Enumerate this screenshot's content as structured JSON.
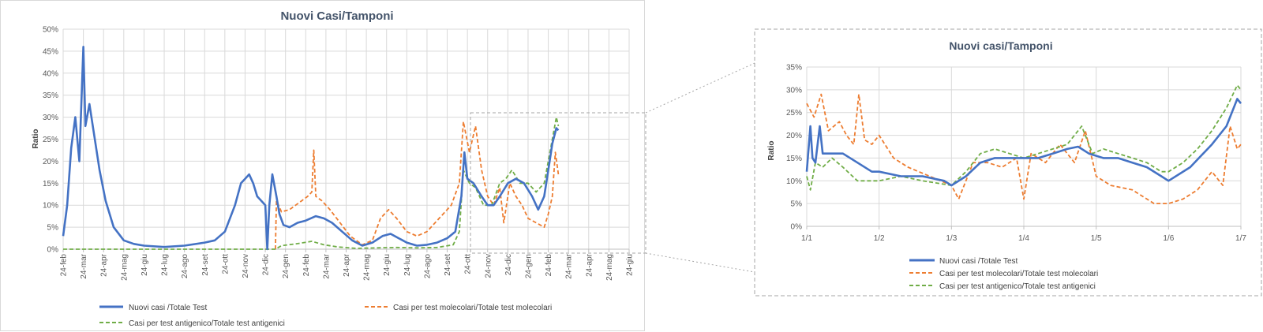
{
  "colors": {
    "series_total": "#4472c4",
    "series_molecular": "#ed7d31",
    "series_antigenic": "#70ad47",
    "gridline": "#d9d9d9",
    "zoom_frame": "#a6a6a6"
  },
  "chart_data": [
    {
      "type": "line",
      "title": "Nuovi Casi/Tamponi",
      "xlabel": "",
      "ylabel": "Ratio",
      "ylim": [
        0,
        0.5
      ],
      "y_ticks": [
        "0%",
        "5%",
        "10%",
        "15%",
        "20%",
        "25%",
        "30%",
        "35%",
        "40%",
        "45%",
        "50%"
      ],
      "x_ticks": [
        "24-feb",
        "24-mar",
        "24-apr",
        "24-mag",
        "24-giu",
        "24-lug",
        "24-ago",
        "24-set",
        "24-ott",
        "24-nov",
        "24-dic",
        "24-gen",
        "24-feb",
        "24-mar",
        "24-apr",
        "24-mag",
        "24-giu",
        "24-lug",
        "24-ago",
        "24-set",
        "24-ott",
        "24-nov",
        "24-dic",
        "24-gen",
        "24-feb",
        "24-mar",
        "24-apr",
        "24-mag",
        "24-giu"
      ],
      "grid": true,
      "legend_position": "bottom",
      "series": [
        {
          "name": "Nuovi casi /Totale Test",
          "color_key": "series_total",
          "style": "solid",
          "points": [
            [
              0,
              0.03
            ],
            [
              0.2,
              0.1
            ],
            [
              0.4,
              0.23
            ],
            [
              0.6,
              0.3
            ],
            [
              0.8,
              0.2
            ],
            [
              1.0,
              0.46
            ],
            [
              1.1,
              0.28
            ],
            [
              1.3,
              0.33
            ],
            [
              1.5,
              0.27
            ],
            [
              1.8,
              0.18
            ],
            [
              2.1,
              0.11
            ],
            [
              2.5,
              0.05
            ],
            [
              3,
              0.02
            ],
            [
              3.5,
              0.012
            ],
            [
              4,
              0.008
            ],
            [
              5,
              0.005
            ],
            [
              6,
              0.008
            ],
            [
              7,
              0.015
            ],
            [
              7.5,
              0.02
            ],
            [
              8,
              0.04
            ],
            [
              8.5,
              0.1
            ],
            [
              8.8,
              0.15
            ],
            [
              9,
              0.16
            ],
            [
              9.2,
              0.17
            ],
            [
              9.4,
              0.15
            ],
            [
              9.6,
              0.12
            ],
            [
              9.8,
              0.11
            ],
            [
              10,
              0.1
            ],
            [
              10.1,
              0.0
            ],
            [
              10.2,
              0.1
            ],
            [
              10.35,
              0.17
            ],
            [
              10.55,
              0.12
            ],
            [
              10.7,
              0.08
            ],
            [
              10.9,
              0.055
            ],
            [
              11.2,
              0.05
            ],
            [
              11.6,
              0.06
            ],
            [
              12,
              0.065
            ],
            [
              12.5,
              0.075
            ],
            [
              12.9,
              0.07
            ],
            [
              13.3,
              0.06
            ],
            [
              13.8,
              0.04
            ],
            [
              14.3,
              0.02
            ],
            [
              14.8,
              0.008
            ],
            [
              15.3,
              0.015
            ],
            [
              15.8,
              0.03
            ],
            [
              16.2,
              0.035
            ],
            [
              16.6,
              0.025
            ],
            [
              17.0,
              0.015
            ],
            [
              17.5,
              0.008
            ],
            [
              18.0,
              0.01
            ],
            [
              18.5,
              0.015
            ],
            [
              19.0,
              0.025
            ],
            [
              19.4,
              0.04
            ],
            [
              19.7,
              0.12
            ],
            [
              19.85,
              0.22
            ],
            [
              20.0,
              0.16
            ],
            [
              20.3,
              0.15
            ],
            [
              20.7,
              0.12
            ],
            [
              21.0,
              0.1
            ],
            [
              21.3,
              0.1
            ],
            [
              21.6,
              0.12
            ],
            [
              22.0,
              0.15
            ],
            [
              22.4,
              0.16
            ],
            [
              22.8,
              0.15
            ],
            [
              23.2,
              0.12
            ],
            [
              23.5,
              0.09
            ],
            [
              23.8,
              0.12
            ],
            [
              24.0,
              0.18
            ],
            [
              24.2,
              0.24
            ],
            [
              24.4,
              0.275
            ],
            [
              24.5,
              0.27
            ]
          ]
        },
        {
          "name": "Casi per test molecolari/Totale test molecolari",
          "color_key": "series_molecular",
          "style": "dashed",
          "points": [
            [
              10.5,
              0.0
            ],
            [
              10.55,
              0.11
            ],
            [
              10.8,
              0.085
            ],
            [
              11.2,
              0.09
            ],
            [
              11.5,
              0.1
            ],
            [
              11.8,
              0.11
            ],
            [
              12.1,
              0.12
            ],
            [
              12.3,
              0.13
            ],
            [
              12.4,
              0.225
            ],
            [
              12.5,
              0.12
            ],
            [
              12.8,
              0.11
            ],
            [
              13.2,
              0.09
            ],
            [
              13.7,
              0.06
            ],
            [
              14.2,
              0.03
            ],
            [
              14.8,
              0.01
            ],
            [
              15.3,
              0.02
            ],
            [
              15.7,
              0.07
            ],
            [
              16.1,
              0.09
            ],
            [
              16.5,
              0.07
            ],
            [
              17.0,
              0.04
            ],
            [
              17.5,
              0.03
            ],
            [
              18.0,
              0.04
            ],
            [
              18.6,
              0.07
            ],
            [
              19.2,
              0.1
            ],
            [
              19.6,
              0.15
            ],
            [
              19.8,
              0.29
            ],
            [
              20.1,
              0.22
            ],
            [
              20.4,
              0.28
            ],
            [
              20.7,
              0.18
            ],
            [
              21.0,
              0.12
            ],
            [
              21.3,
              0.1
            ],
            [
              21.6,
              0.14
            ],
            [
              21.8,
              0.06
            ],
            [
              22.1,
              0.15
            ],
            [
              22.4,
              0.12
            ],
            [
              22.7,
              0.1
            ],
            [
              23.0,
              0.07
            ],
            [
              23.4,
              0.06
            ],
            [
              23.8,
              0.05
            ],
            [
              24.0,
              0.08
            ],
            [
              24.2,
              0.12
            ],
            [
              24.35,
              0.22
            ],
            [
              24.5,
              0.17
            ]
          ]
        },
        {
          "name": "Casi per test antigenico/Totale test antigenici",
          "color_key": "series_antigenic",
          "style": "dashed",
          "points": [
            [
              0,
              0.0
            ],
            [
              10.5,
              0.0
            ],
            [
              10.8,
              0.008
            ],
            [
              11.5,
              0.012
            ],
            [
              12.3,
              0.018
            ],
            [
              12.9,
              0.01
            ],
            [
              13.6,
              0.005
            ],
            [
              14.5,
              0.002
            ],
            [
              15.5,
              0.003
            ],
            [
              16.5,
              0.004
            ],
            [
              17.5,
              0.003
            ],
            [
              18.5,
              0.004
            ],
            [
              19.3,
              0.01
            ],
            [
              19.6,
              0.04
            ],
            [
              19.8,
              0.18
            ],
            [
              20.1,
              0.15
            ],
            [
              20.4,
              0.14
            ],
            [
              20.8,
              0.1
            ],
            [
              21.2,
              0.1
            ],
            [
              21.6,
              0.15
            ],
            [
              21.9,
              0.16
            ],
            [
              22.2,
              0.18
            ],
            [
              22.6,
              0.15
            ],
            [
              23.0,
              0.15
            ],
            [
              23.4,
              0.13
            ],
            [
              23.8,
              0.15
            ],
            [
              24.0,
              0.2
            ],
            [
              24.2,
              0.25
            ],
            [
              24.4,
              0.3
            ],
            [
              24.5,
              0.28
            ]
          ]
        }
      ]
    },
    {
      "type": "line",
      "title": "Nuovi casi/Tamponi",
      "xlabel": "",
      "ylabel": "Ratio",
      "ylim": [
        0,
        0.35
      ],
      "y_ticks": [
        "0%",
        "5%",
        "10%",
        "15%",
        "20%",
        "25%",
        "30%",
        "35%"
      ],
      "x_ticks": [
        "1/1",
        "1/2",
        "1/3",
        "1/4",
        "1/5",
        "1/6",
        "1/7"
      ],
      "grid": true,
      "legend_position": "bottom",
      "series": [
        {
          "name": "Nuovi casi /Totale Test",
          "color_key": "series_total",
          "style": "solid",
          "points": [
            [
              0,
              0.12
            ],
            [
              0.05,
              0.22
            ],
            [
              0.08,
              0.15
            ],
            [
              0.12,
              0.14
            ],
            [
              0.18,
              0.22
            ],
            [
              0.22,
              0.16
            ],
            [
              0.35,
              0.16
            ],
            [
              0.5,
              0.16
            ],
            [
              0.7,
              0.14
            ],
            [
              0.9,
              0.12
            ],
            [
              1.0,
              0.12
            ],
            [
              1.3,
              0.11
            ],
            [
              1.6,
              0.11
            ],
            [
              1.9,
              0.1
            ],
            [
              2.0,
              0.09
            ],
            [
              2.2,
              0.11
            ],
            [
              2.4,
              0.14
            ],
            [
              2.6,
              0.15
            ],
            [
              2.8,
              0.15
            ],
            [
              3.0,
              0.15
            ],
            [
              3.2,
              0.15
            ],
            [
              3.4,
              0.16
            ],
            [
              3.6,
              0.17
            ],
            [
              3.75,
              0.175
            ],
            [
              3.9,
              0.16
            ],
            [
              4.1,
              0.15
            ],
            [
              4.3,
              0.15
            ],
            [
              4.5,
              0.14
            ],
            [
              4.7,
              0.13
            ],
            [
              4.9,
              0.11
            ],
            [
              5.0,
              0.1
            ],
            [
              5.3,
              0.13
            ],
            [
              5.6,
              0.18
            ],
            [
              5.8,
              0.22
            ],
            [
              5.95,
              0.28
            ],
            [
              6.0,
              0.27
            ]
          ]
        },
        {
          "name": "Casi per test molecolari/Totale test molecolari",
          "color_key": "series_molecular",
          "style": "dashed",
          "points": [
            [
              0,
              0.27
            ],
            [
              0.1,
              0.24
            ],
            [
              0.2,
              0.29
            ],
            [
              0.3,
              0.21
            ],
            [
              0.45,
              0.23
            ],
            [
              0.55,
              0.2
            ],
            [
              0.65,
              0.18
            ],
            [
              0.72,
              0.29
            ],
            [
              0.8,
              0.19
            ],
            [
              0.9,
              0.18
            ],
            [
              1.0,
              0.2
            ],
            [
              1.2,
              0.15
            ],
            [
              1.4,
              0.13
            ],
            [
              1.7,
              0.11
            ],
            [
              2.0,
              0.09
            ],
            [
              2.1,
              0.06
            ],
            [
              2.3,
              0.14
            ],
            [
              2.5,
              0.14
            ],
            [
              2.7,
              0.13
            ],
            [
              2.9,
              0.15
            ],
            [
              3.0,
              0.06
            ],
            [
              3.1,
              0.16
            ],
            [
              3.3,
              0.14
            ],
            [
              3.5,
              0.18
            ],
            [
              3.7,
              0.14
            ],
            [
              3.85,
              0.21
            ],
            [
              4.0,
              0.11
            ],
            [
              4.2,
              0.09
            ],
            [
              4.5,
              0.08
            ],
            [
              4.8,
              0.05
            ],
            [
              5.0,
              0.05
            ],
            [
              5.2,
              0.06
            ],
            [
              5.4,
              0.08
            ],
            [
              5.6,
              0.12
            ],
            [
              5.75,
              0.09
            ],
            [
              5.85,
              0.22
            ],
            [
              5.95,
              0.17
            ],
            [
              6.0,
              0.18
            ]
          ]
        },
        {
          "name": "Casi per test antigenico/Totale test antigenici",
          "color_key": "series_antigenic",
          "style": "dashed",
          "points": [
            [
              0,
              0.11
            ],
            [
              0.05,
              0.08
            ],
            [
              0.12,
              0.14
            ],
            [
              0.22,
              0.13
            ],
            [
              0.35,
              0.15
            ],
            [
              0.5,
              0.13
            ],
            [
              0.7,
              0.1
            ],
            [
              1.0,
              0.1
            ],
            [
              1.3,
              0.11
            ],
            [
              1.6,
              0.1
            ],
            [
              2.0,
              0.09
            ],
            [
              2.2,
              0.12
            ],
            [
              2.4,
              0.16
            ],
            [
              2.6,
              0.17
            ],
            [
              2.8,
              0.16
            ],
            [
              3.0,
              0.15
            ],
            [
              3.2,
              0.16
            ],
            [
              3.4,
              0.17
            ],
            [
              3.6,
              0.18
            ],
            [
              3.8,
              0.22
            ],
            [
              3.95,
              0.16
            ],
            [
              4.1,
              0.17
            ],
            [
              4.3,
              0.16
            ],
            [
              4.5,
              0.15
            ],
            [
              4.7,
              0.14
            ],
            [
              4.9,
              0.12
            ],
            [
              5.0,
              0.12
            ],
            [
              5.2,
              0.14
            ],
            [
              5.4,
              0.17
            ],
            [
              5.6,
              0.21
            ],
            [
              5.8,
              0.26
            ],
            [
              5.95,
              0.31
            ],
            [
              6.0,
              0.3
            ]
          ]
        }
      ]
    }
  ]
}
